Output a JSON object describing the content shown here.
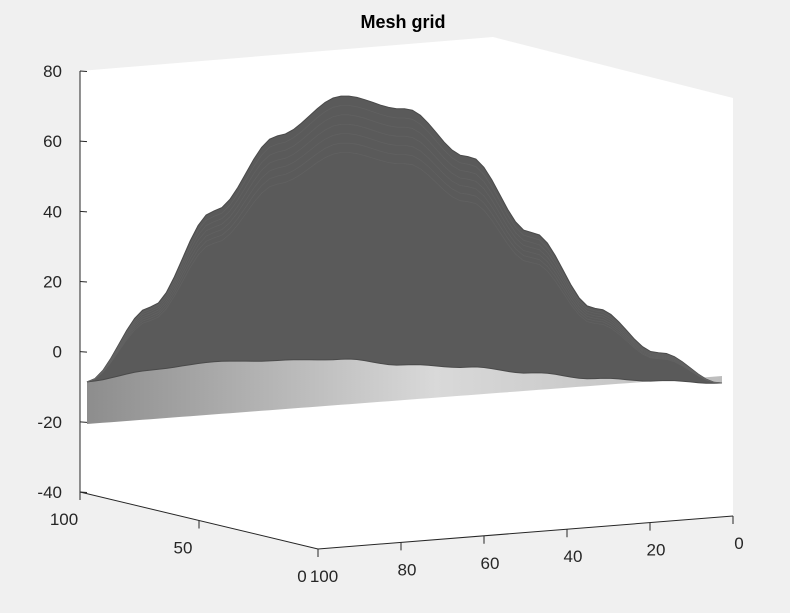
{
  "chart_data": {
    "type": "surface",
    "title": "Mesh grid",
    "xlabel": "",
    "ylabel": "",
    "zlabel": "",
    "xlim": [
      0,
      100
    ],
    "ylim": [
      0,
      100
    ],
    "zlim": [
      -40,
      80
    ],
    "x_ticks": [
      0,
      20,
      40,
      60,
      80,
      100
    ],
    "y_ticks": [
      0,
      50,
      100
    ],
    "z_ticks": [
      -40,
      -20,
      0,
      20,
      40,
      60,
      80
    ],
    "surface": {
      "description_values": {
        "peak_z": 68,
        "peak_x": 60,
        "base_z": -20
      },
      "profile_x": [
        0,
        10,
        20,
        30,
        40,
        50,
        60,
        70,
        80,
        90,
        100
      ],
      "profile_z_far": [
        -22,
        -12,
        2,
        25,
        48,
        63,
        68,
        58,
        38,
        12,
        -8
      ],
      "profile_z_near": [
        -22,
        -20,
        -18,
        -15,
        -12,
        -10,
        -7,
        -6,
        -5,
        -6,
        -8
      ]
    },
    "colors": {
      "surface_top": "#5a5a5a",
      "surface_under": "#c8c8c8",
      "axes_face": "#ffffff",
      "figure_bg": "#f0f0f0",
      "axis_line": "#262626"
    }
  }
}
